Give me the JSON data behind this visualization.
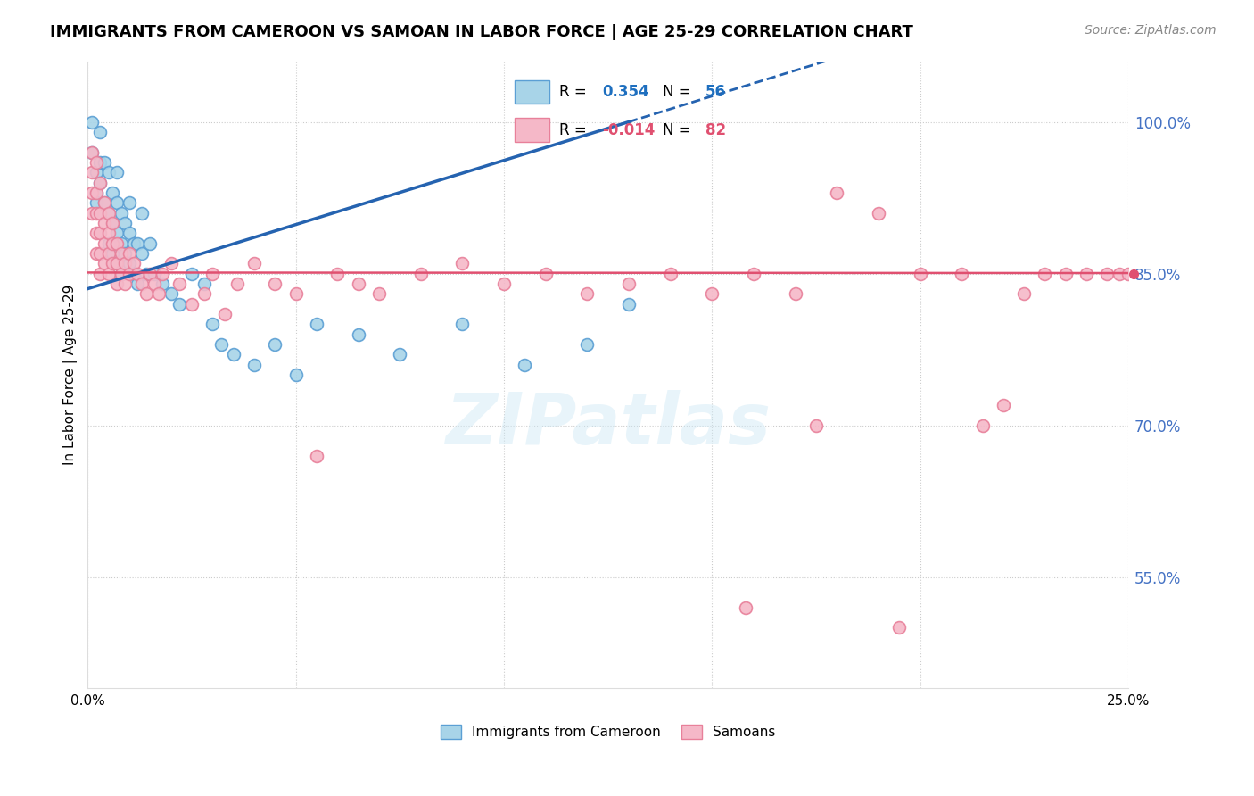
{
  "title": "IMMIGRANTS FROM CAMEROON VS SAMOAN IN LABOR FORCE | AGE 25-29 CORRELATION CHART",
  "source": "Source: ZipAtlas.com",
  "ylabel": "In Labor Force | Age 25-29",
  "xlim": [
    0.0,
    0.25
  ],
  "ylim": [
    0.44,
    1.06
  ],
  "xticks": [
    0.0,
    0.05,
    0.1,
    0.15,
    0.2,
    0.25
  ],
  "xticklabels": [
    "0.0%",
    "",
    "",
    "",
    "",
    "25.0%"
  ],
  "yticks_right": [
    0.55,
    0.7,
    0.85,
    1.0
  ],
  "ytick_labels_right": [
    "55.0%",
    "70.0%",
    "85.0%",
    "100.0%"
  ],
  "r_cameroon": 0.354,
  "n_cameroon": 56,
  "r_samoan": -0.014,
  "n_samoan": 82,
  "color_cameroon": "#a8d4e8",
  "color_samoan": "#f5b8c8",
  "edge_cameroon": "#5b9fd4",
  "edge_samoan": "#e8809a",
  "line_color_cameroon": "#2563b0",
  "line_color_samoan": "#e05070",
  "watermark": "ZIPatlas",
  "cam_x": [
    0.001,
    0.001,
    0.002,
    0.002,
    0.002,
    0.003,
    0.003,
    0.003,
    0.003,
    0.004,
    0.004,
    0.005,
    0.005,
    0.005,
    0.006,
    0.006,
    0.006,
    0.007,
    0.007,
    0.007,
    0.007,
    0.008,
    0.008,
    0.008,
    0.009,
    0.009,
    0.01,
    0.01,
    0.01,
    0.011,
    0.011,
    0.012,
    0.012,
    0.013,
    0.013,
    0.014,
    0.015,
    0.016,
    0.018,
    0.02,
    0.022,
    0.025,
    0.028,
    0.03,
    0.032,
    0.035,
    0.04,
    0.045,
    0.05,
    0.055,
    0.065,
    0.075,
    0.09,
    0.105,
    0.12,
    0.13
  ],
  "cam_y": [
    1.0,
    0.97,
    0.95,
    0.93,
    0.92,
    0.99,
    0.96,
    0.94,
    0.91,
    0.92,
    0.96,
    0.88,
    0.91,
    0.95,
    0.87,
    0.9,
    0.93,
    0.86,
    0.89,
    0.92,
    0.95,
    0.85,
    0.88,
    0.91,
    0.87,
    0.9,
    0.86,
    0.89,
    0.92,
    0.85,
    0.88,
    0.84,
    0.88,
    0.87,
    0.91,
    0.85,
    0.88,
    0.85,
    0.84,
    0.83,
    0.82,
    0.85,
    0.84,
    0.8,
    0.78,
    0.77,
    0.76,
    0.78,
    0.75,
    0.8,
    0.79,
    0.77,
    0.8,
    0.76,
    0.78,
    0.82
  ],
  "sam_x": [
    0.001,
    0.001,
    0.001,
    0.001,
    0.002,
    0.002,
    0.002,
    0.002,
    0.002,
    0.003,
    0.003,
    0.003,
    0.003,
    0.003,
    0.004,
    0.004,
    0.004,
    0.004,
    0.005,
    0.005,
    0.005,
    0.005,
    0.006,
    0.006,
    0.006,
    0.007,
    0.007,
    0.007,
    0.008,
    0.008,
    0.009,
    0.009,
    0.01,
    0.01,
    0.011,
    0.012,
    0.013,
    0.014,
    0.015,
    0.016,
    0.017,
    0.018,
    0.02,
    0.022,
    0.025,
    0.028,
    0.03,
    0.033,
    0.036,
    0.04,
    0.045,
    0.05,
    0.055,
    0.06,
    0.065,
    0.07,
    0.08,
    0.09,
    0.1,
    0.11,
    0.12,
    0.13,
    0.14,
    0.15,
    0.16,
    0.17,
    0.18,
    0.19,
    0.2,
    0.21,
    0.215,
    0.22,
    0.225,
    0.23,
    0.235,
    0.24,
    0.245,
    0.248,
    0.25,
    0.158,
    0.175,
    0.195
  ],
  "sam_y": [
    0.97,
    0.95,
    0.93,
    0.91,
    0.96,
    0.93,
    0.91,
    0.89,
    0.87,
    0.94,
    0.91,
    0.89,
    0.87,
    0.85,
    0.92,
    0.9,
    0.88,
    0.86,
    0.91,
    0.89,
    0.87,
    0.85,
    0.9,
    0.88,
    0.86,
    0.88,
    0.86,
    0.84,
    0.87,
    0.85,
    0.86,
    0.84,
    0.87,
    0.85,
    0.86,
    0.85,
    0.84,
    0.83,
    0.85,
    0.84,
    0.83,
    0.85,
    0.86,
    0.84,
    0.82,
    0.83,
    0.85,
    0.81,
    0.84,
    0.86,
    0.84,
    0.83,
    0.67,
    0.85,
    0.84,
    0.83,
    0.85,
    0.86,
    0.84,
    0.85,
    0.83,
    0.84,
    0.85,
    0.83,
    0.85,
    0.83,
    0.93,
    0.91,
    0.85,
    0.85,
    0.7,
    0.72,
    0.83,
    0.85,
    0.85,
    0.85,
    0.85,
    0.85,
    0.85,
    0.52,
    0.7,
    0.5
  ]
}
